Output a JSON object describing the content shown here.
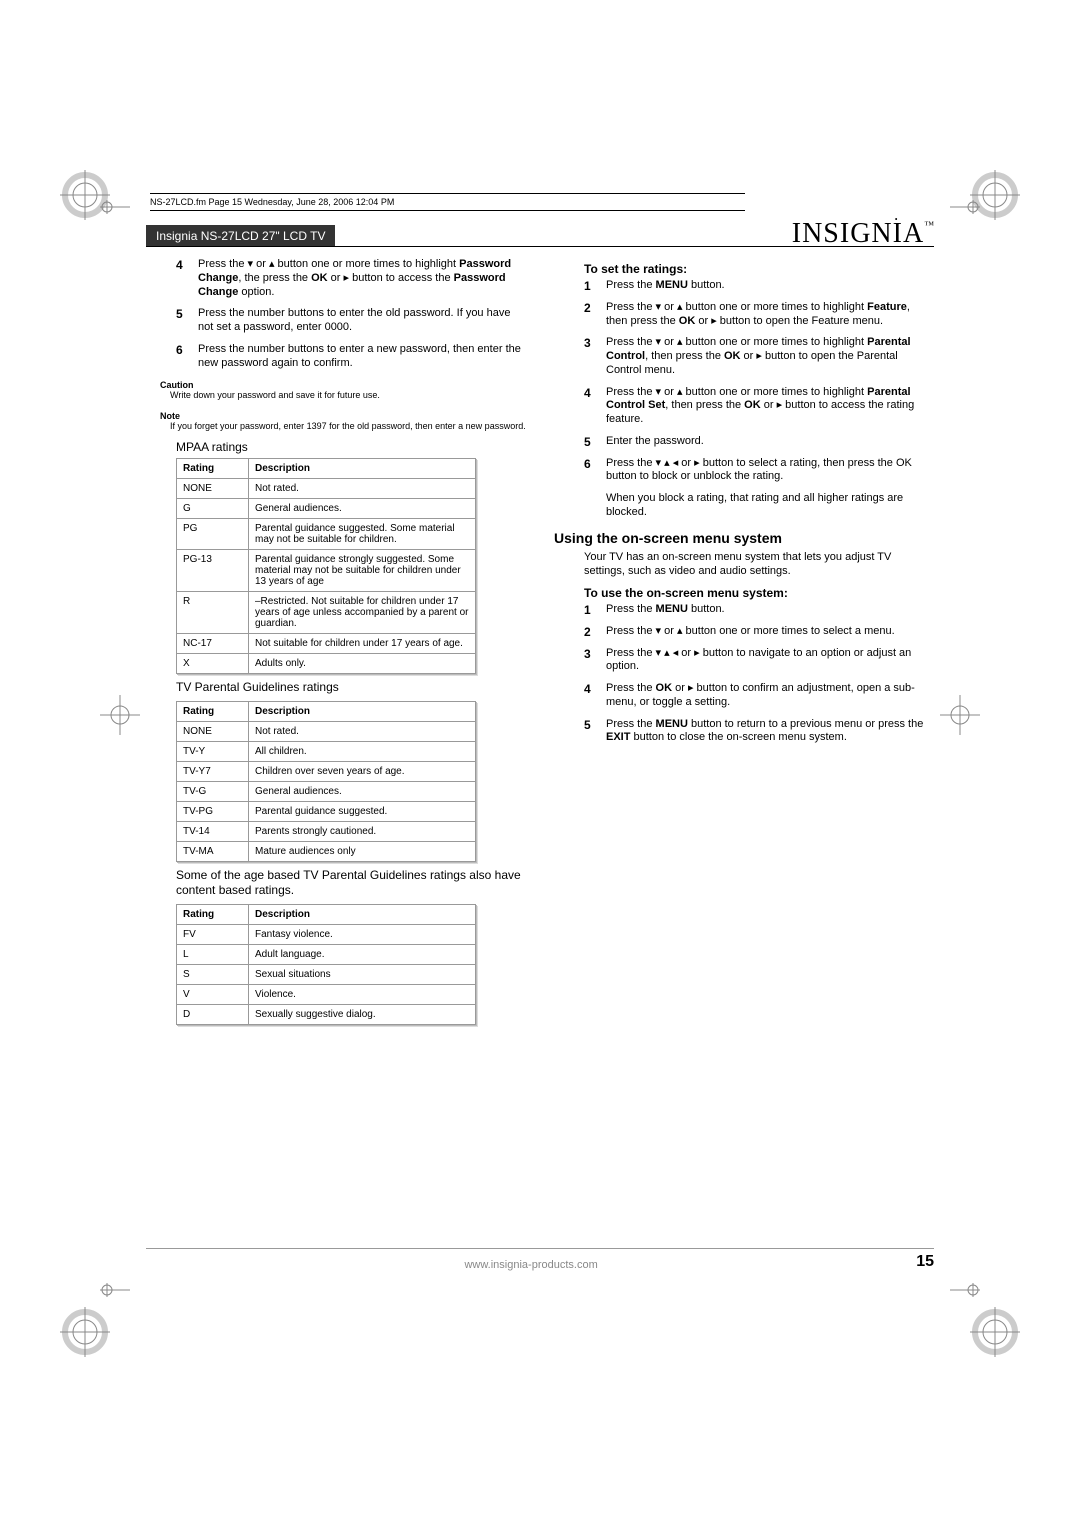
{
  "meta_line": "NS-27LCD.fm  Page 15  Wednesday, June 28, 2006  12:04 PM",
  "header_title": "Insignia NS-27LCD 27\" LCD TV",
  "logo_text": "INSIGNIA",
  "logo_tm": "™",
  "left": {
    "step4": {
      "n": "4",
      "pre": "Press the ",
      "mid": " or ",
      "t2": " button one or more times to highlight ",
      "b1": "Password Change",
      "t3": ", the press the ",
      "b2": "OK",
      "t4": " or ",
      "t5": " button to access the ",
      "b3": "Password Change",
      "t6": " option."
    },
    "step5": {
      "n": "5",
      "t": "Press the number buttons to enter the old password. If you have not set a password, enter 0000."
    },
    "step6": {
      "n": "6",
      "t": "Press the number buttons to enter a new password, then enter the new password again to confirm."
    },
    "caution_label": "Caution",
    "caution_body": "Write down your password and save it for future use.",
    "note_label": "Note",
    "note_body": "If you forget your password, enter 1397 for the old password, then enter a new password.",
    "mpaa_head": "MPAA ratings",
    "th_rating": "Rating",
    "th_desc": "Description",
    "mpaa_rows": [
      {
        "r": "NONE",
        "d": "Not rated."
      },
      {
        "r": "G",
        "d": "General audiences."
      },
      {
        "r": "PG",
        "d": "Parental guidance suggested. Some material may not be suitable for children."
      },
      {
        "r": "PG-13",
        "d": "Parental guidance strongly suggested. Some material may not be suitable for children under 13 years of age"
      },
      {
        "r": "R",
        "d": "–Restricted. Not suitable for children under 17 years of age unless accompanied by a parent or guardian."
      },
      {
        "r": "NC-17",
        "d": "Not suitable for children under 17 years of age."
      },
      {
        "r": "X",
        "d": "Adults only."
      }
    ],
    "tvpg_head": "TV Parental Guidelines ratings",
    "tvpg_rows": [
      {
        "r": "NONE",
        "d": "Not rated."
      },
      {
        "r": "TV-Y",
        "d": "All children."
      },
      {
        "r": "TV-Y7",
        "d": "Children over seven years of age."
      },
      {
        "r": "TV-G",
        "d": "General audiences."
      },
      {
        "r": "TV-PG",
        "d": "Parental guidance suggested."
      },
      {
        "r": "TV-14",
        "d": "Parents strongly cautioned."
      },
      {
        "r": "TV-MA",
        "d": "Mature audiences only"
      }
    ],
    "content_caption": "Some of the age based TV Parental Guidelines ratings also have content based ratings.",
    "content_rows": [
      {
        "r": "FV",
        "d": "Fantasy violence."
      },
      {
        "r": "L",
        "d": "Adult language."
      },
      {
        "r": "S",
        "d": "Sexual situations"
      },
      {
        "r": "V",
        "d": "Violence."
      },
      {
        "r": "D",
        "d": "Sexually suggestive dialog."
      }
    ]
  },
  "right": {
    "set_head": "To set the ratings:",
    "s1": {
      "n": "1",
      "t1": "Press the ",
      "b": "MENU",
      "t2": " button."
    },
    "s2": {
      "n": "2",
      "t1": "Press the ",
      "t2": " or ",
      "t3": " button one or more times to highlight ",
      "b1": "Feature",
      "t4": ", then press the ",
      "b2": "OK",
      "t5": " or ",
      "t6": " button to open the Feature menu."
    },
    "s3": {
      "n": "3",
      "t1": "Press the ",
      "t2": " or ",
      "t3": " button one or more times to highlight ",
      "b1": "Parental Control",
      "t4": ", then press the ",
      "b2": "OK",
      "t5": " or ",
      "t6": " button to open the Parental Control menu."
    },
    "s4": {
      "n": "4",
      "t1": "Press the ",
      "t2": " or ",
      "t3": " button one or more times to highlight ",
      "b1": "Parental Control Set",
      "t4": ", then press the ",
      "b2": "OK",
      "t5": " or ",
      "t6": " button to access the rating feature."
    },
    "s5": {
      "n": "5",
      "t": "Enter the password."
    },
    "s6": {
      "n": "6",
      "t1": "Press the ",
      "t2": " button to select a rating, then press the OK button to block or unblock the rating."
    },
    "s6_after": "When you block a rating, that rating and all higher ratings are blocked.",
    "osd_head": "Using the on-screen menu system",
    "osd_intro": "Your TV has an on-screen menu system that lets you adjust TV settings, such as video and audio settings.",
    "osd_use_head": "To use the on-screen menu system:",
    "o1": {
      "n": "1",
      "t1": "Press the ",
      "b": "MENU",
      "t2": " button."
    },
    "o2": {
      "n": "2",
      "t1": "Press the ",
      "t2": " or ",
      "t3": " button one or more times to select a menu."
    },
    "o3": {
      "n": "3",
      "t1": "Press the ",
      "t2": " button to navigate to an option or adjust an option."
    },
    "o4": {
      "n": "4",
      "t1": "Press the ",
      "b": "OK",
      "t2": " or ",
      "t3": " button to confirm an adjustment, open a sub-menu, or toggle a setting."
    },
    "o5": {
      "n": "5",
      "t1": "Press the ",
      "b1": "MENU",
      "t2": " button to return to a previous menu or press the ",
      "b2": "EXIT",
      "t3": " button to close the on-screen menu system."
    }
  },
  "footer": {
    "url": "www.insignia-products.com",
    "page": "15"
  },
  "glyphs": {
    "down": "▾",
    "up": "▴",
    "left": "◂",
    "right": "▸"
  }
}
